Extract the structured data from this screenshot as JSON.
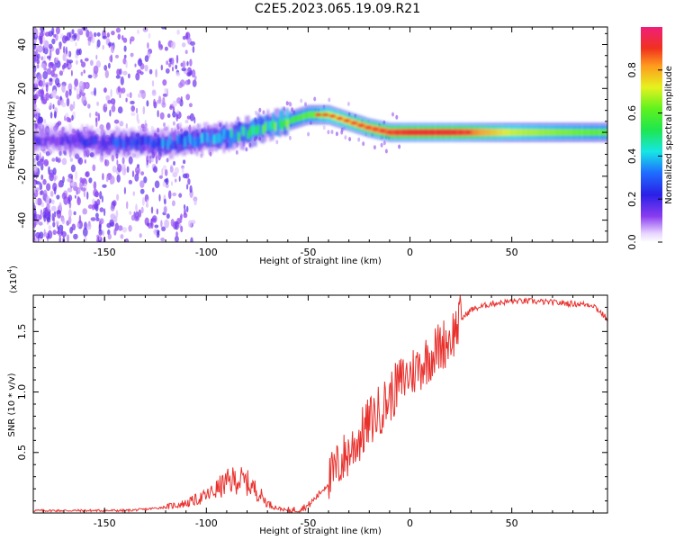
{
  "title": "C2E5.2023.065.19.09.R21",
  "colors": {
    "snr_line": "#e8302c",
    "axis": "#000000",
    "background": "#ffffff"
  },
  "chart_data": [
    {
      "type": "heatmap",
      "name": "spectrogram",
      "xlabel": "Height of straight line (km)",
      "ylabel": "Frequency (Hz)",
      "xlim": [
        -185,
        97
      ],
      "ylim": [
        -50,
        48
      ],
      "xticks": [
        -150,
        -100,
        -50,
        0,
        50
      ],
      "yticks": [
        -40,
        -20,
        0,
        20,
        40
      ],
      "colorbar": {
        "label": "Normalized spectral amplitude",
        "range": [
          0,
          1
        ],
        "ticks": [
          "0.0",
          "0.2",
          "0.4",
          "0.6",
          "0.8"
        ],
        "tick_values": [
          0.0,
          0.2,
          0.4,
          0.6,
          0.8
        ]
      },
      "ridge": {
        "description_points_x_km": [
          -180,
          -160,
          -140,
          -120,
          -100,
          -90,
          -80,
          -70,
          -60,
          -50,
          -40,
          -30,
          -20,
          -10,
          0,
          10,
          20,
          30,
          50,
          70,
          95
        ],
        "frequency_hz": [
          -3,
          -4,
          -5,
          -5,
          -3,
          -2,
          0,
          3,
          5,
          8,
          8,
          5,
          2,
          0,
          0,
          0,
          0,
          0,
          0,
          0,
          0
        ],
        "amplitude": [
          0.15,
          0.2,
          0.25,
          0.3,
          0.35,
          0.4,
          0.45,
          0.5,
          0.55,
          0.6,
          0.7,
          0.75,
          0.8,
          0.85,
          0.9,
          0.9,
          0.9,
          0.85,
          0.7,
          0.65,
          0.6
        ]
      }
    },
    {
      "type": "line",
      "name": "snr",
      "xlabel": "Height of straight line (km)",
      "ylabel": "SNR (10 * v/v)",
      "scale_label": "(x10",
      "scale_exp": "4",
      "scale_close": ")",
      "xlim": [
        -185,
        97
      ],
      "ylim": [
        0,
        1.8
      ],
      "xticks": [
        -150,
        -100,
        -50,
        0,
        50
      ],
      "yticks": [
        0.5,
        1.0,
        1.5
      ],
      "ytick_labels": [
        "0.5",
        "1.0",
        "1.5"
      ],
      "x": [
        -185,
        -160,
        -140,
        -130,
        -120,
        -110,
        -100,
        -90,
        -85,
        -80,
        -75,
        -70,
        -65,
        -60,
        -55,
        -50,
        -45,
        -40,
        -35,
        -30,
        -25,
        -20,
        -15,
        -10,
        -5,
        0,
        5,
        10,
        15,
        20,
        25,
        30,
        40,
        50,
        60,
        70,
        80,
        90,
        97
      ],
      "y": [
        0.02,
        0.02,
        0.02,
        0.03,
        0.05,
        0.08,
        0.14,
        0.25,
        0.28,
        0.25,
        0.18,
        0.08,
        0.04,
        0.02,
        0.03,
        0.06,
        0.15,
        0.25,
        0.4,
        0.5,
        0.62,
        0.75,
        0.85,
        0.95,
        1.08,
        1.15,
        1.22,
        1.3,
        1.38,
        1.45,
        1.6,
        1.68,
        1.73,
        1.75,
        1.75,
        1.74,
        1.73,
        1.72,
        1.6
      ]
    }
  ]
}
